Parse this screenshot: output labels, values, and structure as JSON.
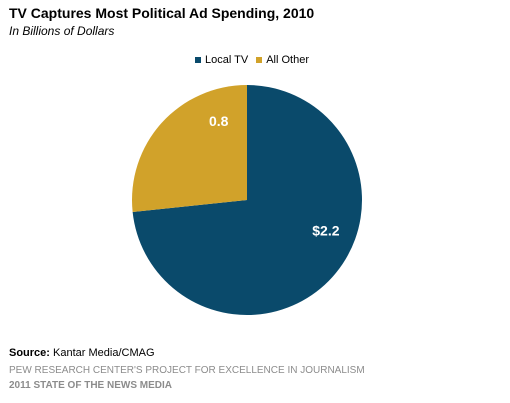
{
  "chart_data": {
    "type": "pie",
    "title": "TV Captures Most Political Ad Spending, 2010",
    "subtitle": "In Billions of Dollars",
    "categories": [
      "Local TV",
      "All Other"
    ],
    "values": [
      2.2,
      0.8
    ],
    "labels": [
      "$2.2",
      "0.8"
    ],
    "colors": [
      "#0a4a6b",
      "#d1a22a"
    ],
    "legend_position": "top",
    "start_angle_deg": 0,
    "direction": "clockwise"
  },
  "footer": {
    "source_label": "Source:",
    "source_value": "Kantar Media/CMAG",
    "credit_line1": "PEW RESEARCH CENTER'S PROJECT FOR EXCELLENCE IN JOURNALISM",
    "credit_line2": "2011 STATE OF THE NEWS MEDIA"
  }
}
